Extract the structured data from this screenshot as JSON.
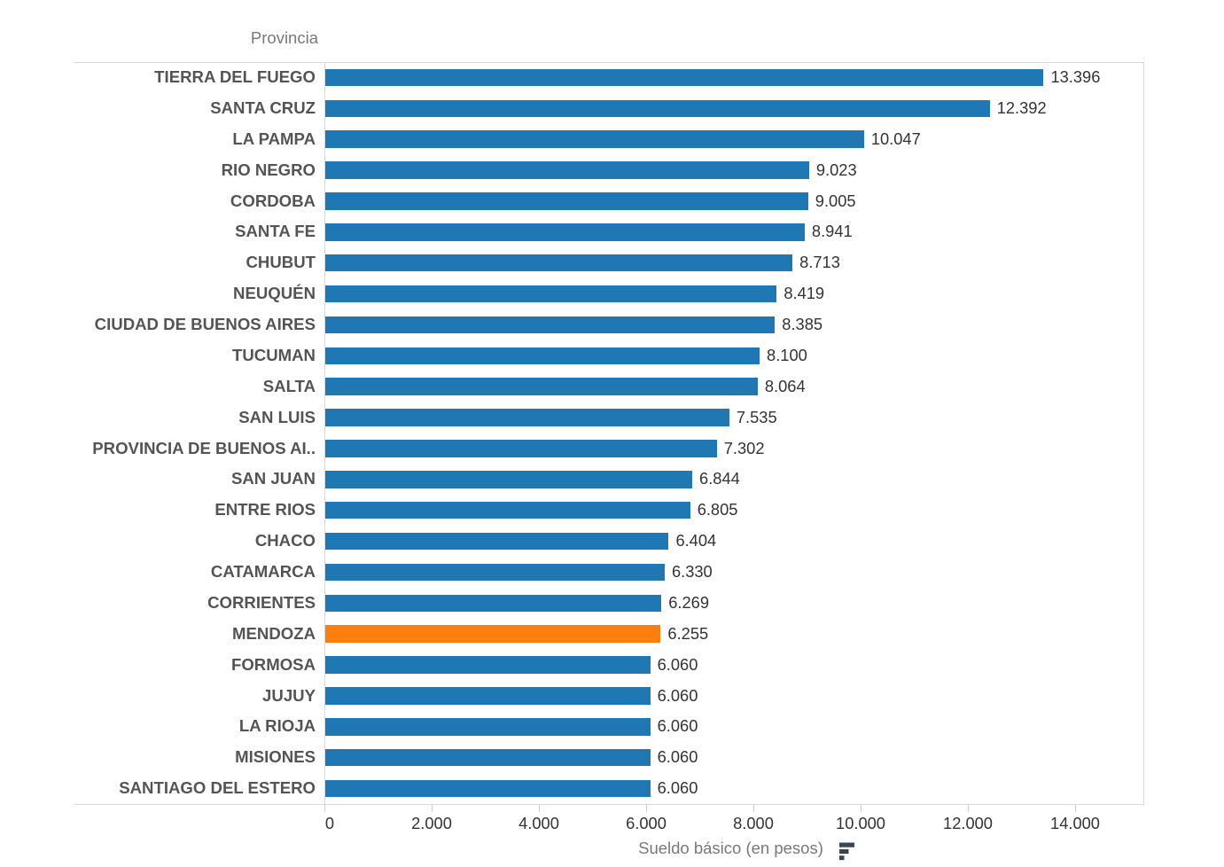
{
  "chart_data": {
    "type": "bar",
    "orientation": "horizontal",
    "sort": "descending",
    "title": "",
    "row_field_label": "Provincia",
    "xlabel": "Sueldo básico (en pesos)",
    "categories": [
      "TIERRA DEL FUEGO",
      "SANTA CRUZ",
      "LA PAMPA",
      "RIO NEGRO",
      "CORDOBA",
      "SANTA FE",
      "CHUBUT",
      "NEUQUÉN",
      "CIUDAD DE BUENOS AIRES",
      "TUCUMAN",
      "SALTA",
      "SAN LUIS",
      "PROVINCIA DE BUENOS AI..",
      "SAN JUAN",
      "ENTRE RIOS",
      "CHACO",
      "CATAMARCA",
      "CORRIENTES",
      "MENDOZA",
      "FORMOSA",
      "JUJUY",
      "LA RIOJA",
      "MISIONES",
      "SANTIAGO DEL ESTERO"
    ],
    "values": [
      13396,
      12392,
      10047,
      9023,
      9005,
      8941,
      8713,
      8419,
      8385,
      8100,
      8064,
      7535,
      7302,
      6844,
      6805,
      6404,
      6330,
      6269,
      6255,
      6060,
      6060,
      6060,
      6060,
      6060
    ],
    "value_labels": [
      "13.396",
      "12.392",
      "10.047",
      "9.023",
      "9.005",
      "8.941",
      "8.713",
      "8.419",
      "8.385",
      "8.100",
      "8.064",
      "7.535",
      "7.302",
      "6.844",
      "6.805",
      "6.404",
      "6.330",
      "6.269",
      "6.255",
      "6.060",
      "6.060",
      "6.060",
      "6.060",
      "6.060"
    ],
    "highlight_category": "MENDOZA",
    "highlight_index": 18,
    "x_ticks": [
      0,
      2000,
      4000,
      6000,
      8000,
      10000,
      12000,
      14000
    ],
    "x_tick_labels": [
      "0",
      "2.000",
      "4.000",
      "6.000",
      "8.000",
      "10.000",
      "12.000",
      "14.000"
    ],
    "xlim": [
      0,
      15280
    ],
    "grid": false,
    "legend_position": "none"
  },
  "colors": {
    "bar": "#1f77b4",
    "highlight": "#ff7f0e",
    "border_line": "#d9d9d9",
    "tick_mark": "#cccccc",
    "category_label": "#545454",
    "value_label": "#333333",
    "tick_label": "#333333",
    "field_label": "#787878",
    "sort_icon": "#3b4552",
    "background": "#ffffff"
  },
  "icons": {
    "x_axis_sort_icon": "sort-descending-icon"
  }
}
